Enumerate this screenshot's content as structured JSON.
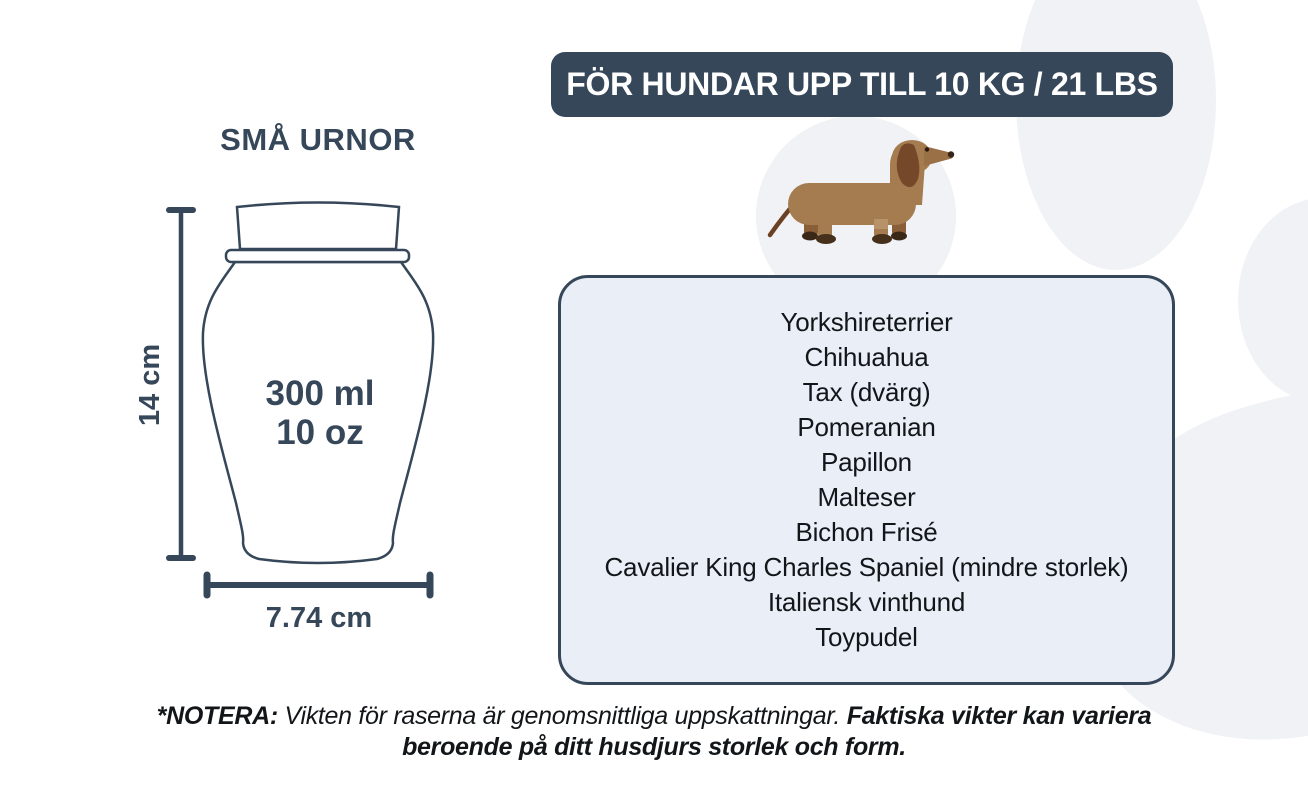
{
  "banner": {
    "label": "FÖR HUNDAR UPP TILL 10 KG / 21 LBS"
  },
  "urn": {
    "title": "SMÅ URNOR",
    "volume_ml": "300 ml",
    "volume_oz": "10 oz",
    "height_label": "14 cm",
    "width_label": "7.74 cm"
  },
  "breed_box": {
    "breeds": [
      "Yorkshireterrier",
      "Chihuahua",
      "Tax (dvärg)",
      "Pomeranian",
      "Papillon",
      "Malteser",
      "Bichon Frisé",
      "Cavalier King Charles Spaniel (mindre storlek)",
      "Italiensk vinthund",
      "Toypudel"
    ]
  },
  "note": {
    "prefix": "*NOTERA:",
    "regular": "Vikten för raserna är genomsnittliga uppskattningar.",
    "bold_line1": "Faktiska vikter kan variera",
    "bold_line2": "beroende på ditt husdjurs storlek och form."
  },
  "icons": {
    "dog": "dachshund-icon",
    "background": "paw-print-shape"
  },
  "colors": {
    "dark_slate": "#36475A",
    "box_fill": "#E9EEF7",
    "paw_gray": "#F0F2F5",
    "dog_body": "#A57C50",
    "dog_dark_brown": "#76482A",
    "dog_paw": "#46301C",
    "text_dark": "#131619"
  }
}
